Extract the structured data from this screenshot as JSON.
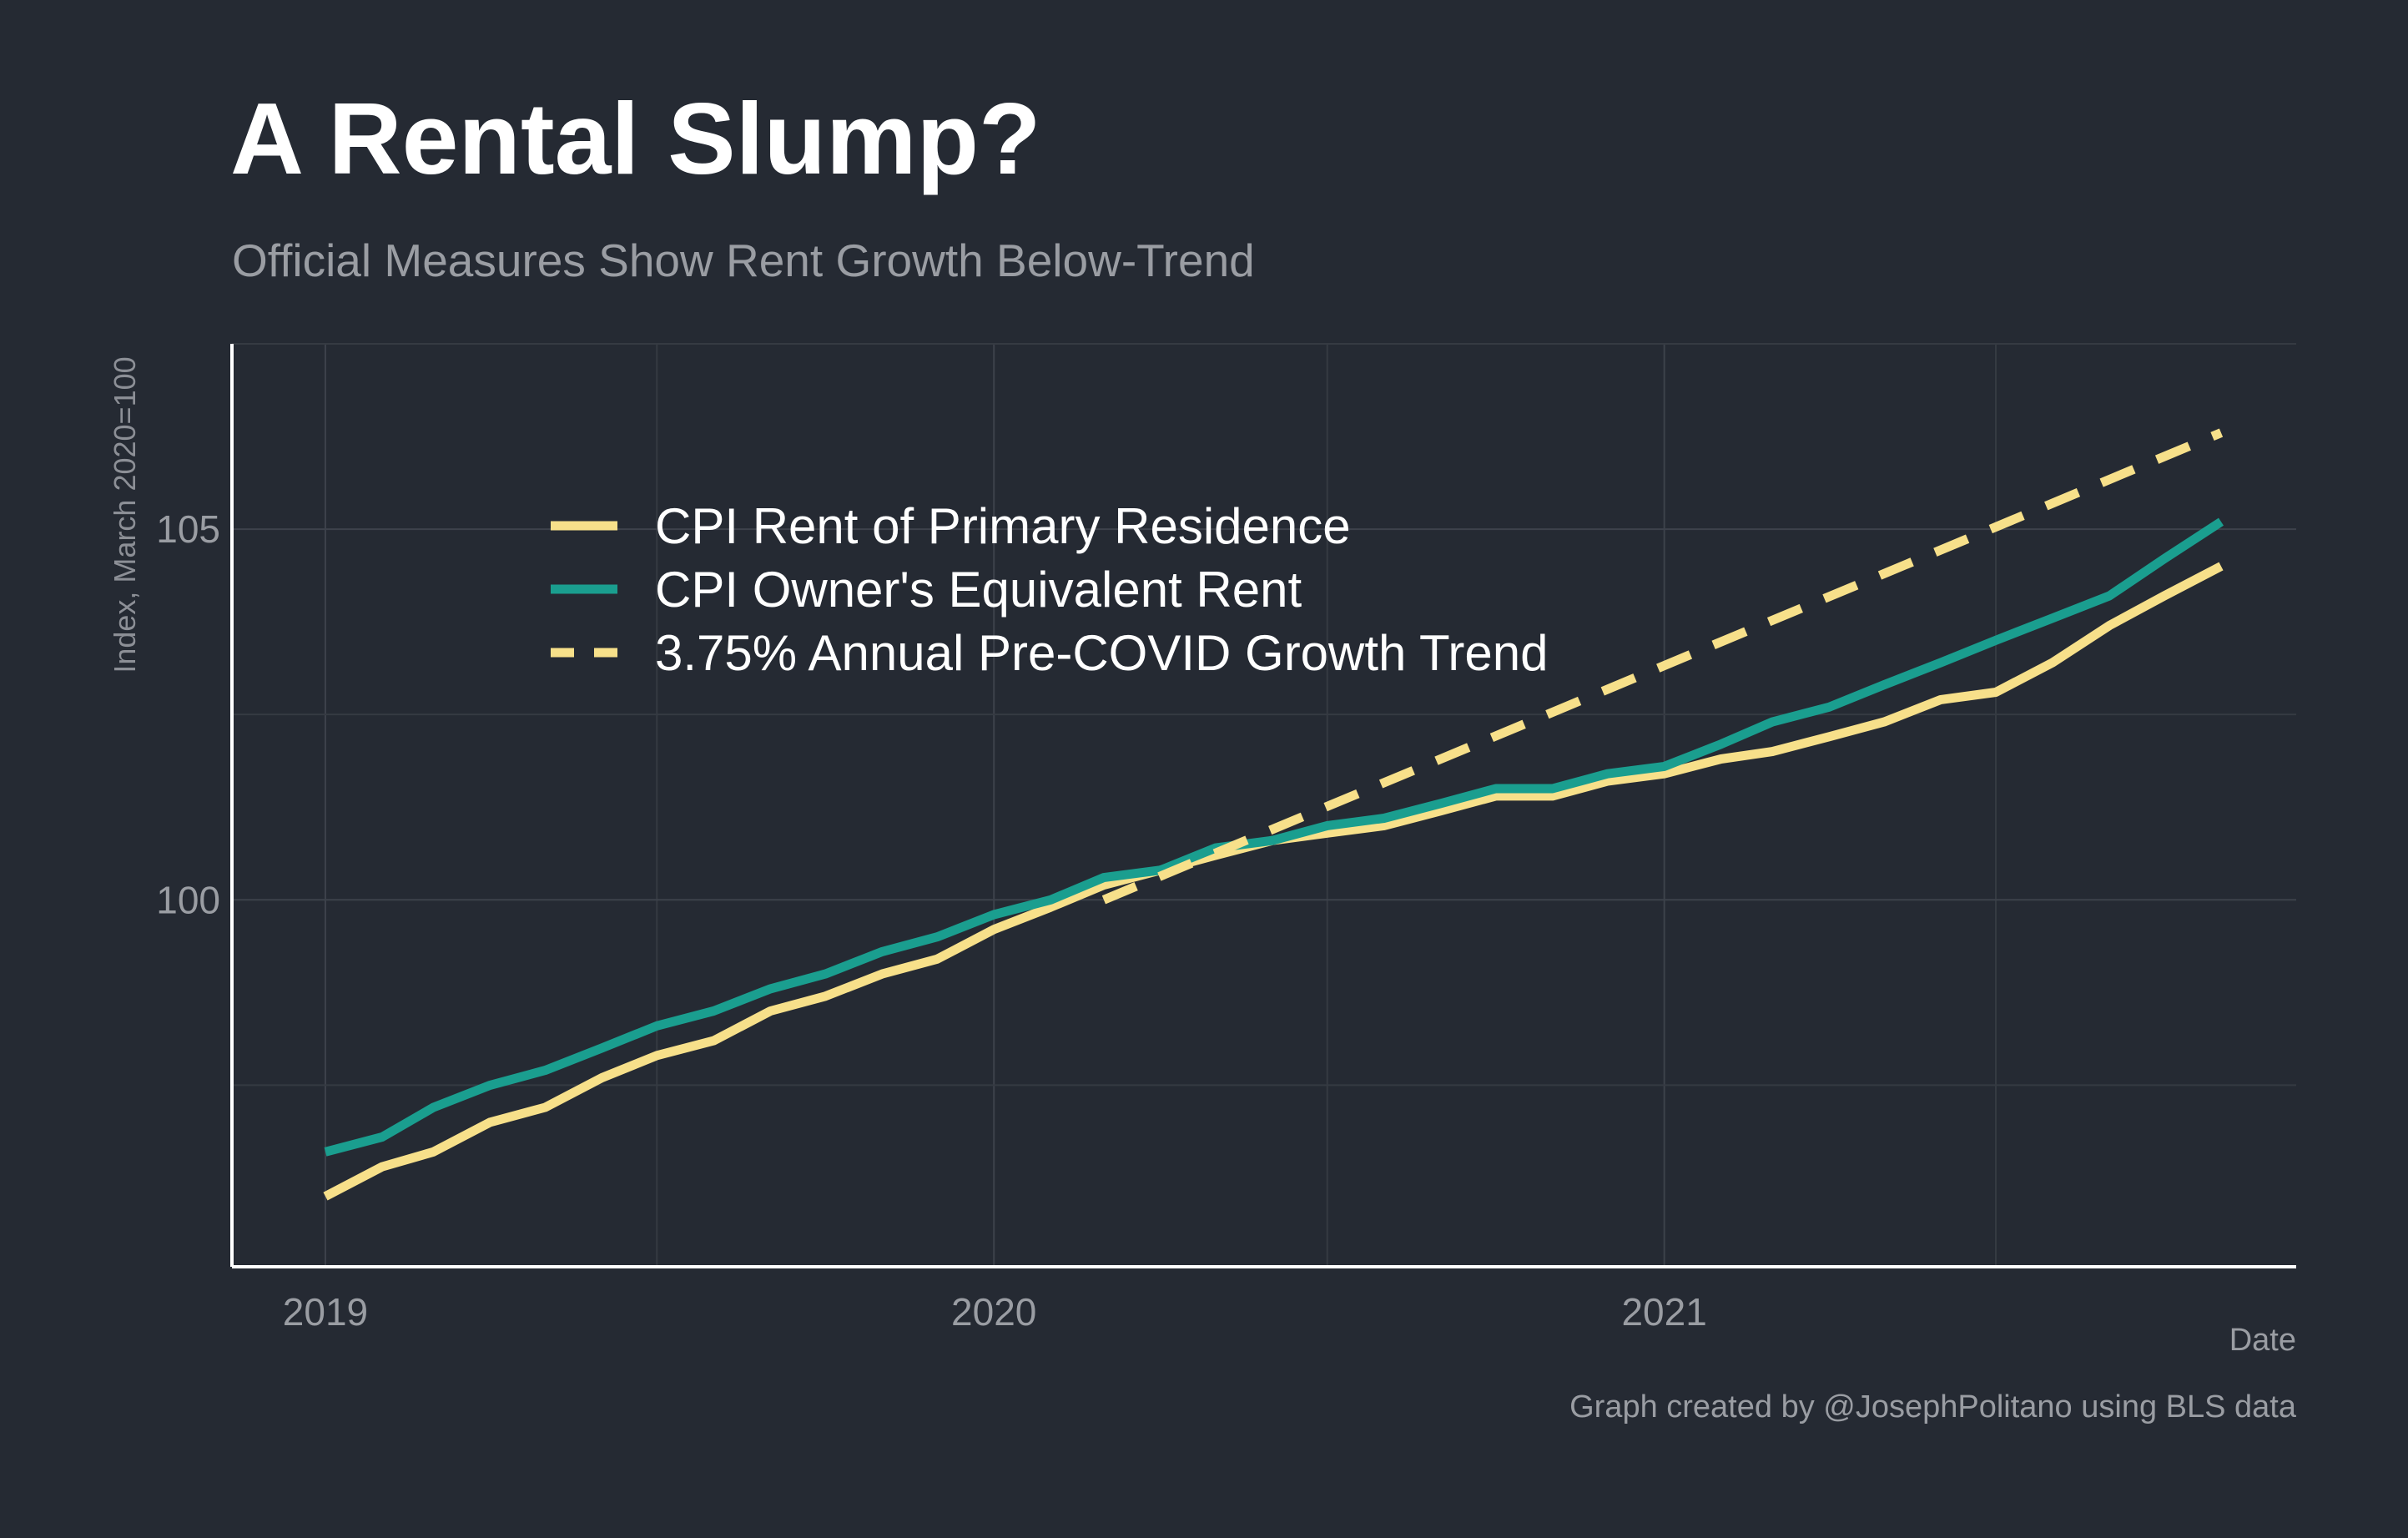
{
  "title": "A Rental Slump?",
  "subtitle": "Official Measures Show Rent Growth Below-Trend",
  "caption": "Graph created by @JosephPolitano using BLS data",
  "chart_data": {
    "type": "line",
    "xlabel": "Date",
    "ylabel": "Index, March 2020=100",
    "x_ticks": [
      "2019",
      "2020",
      "2021"
    ],
    "y_ticks": [
      100,
      105
    ],
    "xlim": [
      "2018-11-11",
      "2021-12-12"
    ],
    "ylim": [
      95.05,
      107.5
    ],
    "grid": true,
    "legend_position": "upper-left inside plot",
    "background_color": "#252a33",
    "series": [
      {
        "name": "CPI Rent of Primary Residence",
        "color": "#f7e08a",
        "style": "solid",
        "x": [
          "2019-01-01",
          "2019-02-01",
          "2019-03-01",
          "2019-04-01",
          "2019-05-01",
          "2019-06-01",
          "2019-07-01",
          "2019-08-01",
          "2019-09-01",
          "2019-10-01",
          "2019-11-01",
          "2019-12-01",
          "2020-01-01",
          "2020-02-01",
          "2020-03-01",
          "2020-04-01",
          "2020-05-01",
          "2020-06-01",
          "2020-07-01",
          "2020-08-01",
          "2020-09-01",
          "2020-10-01",
          "2020-11-01",
          "2020-12-01",
          "2021-01-01",
          "2021-02-01",
          "2021-03-01",
          "2021-04-01",
          "2021-05-01",
          "2021-06-01",
          "2021-07-01",
          "2021-08-01",
          "2021-09-01",
          "2021-10-01",
          "2021-11-01"
        ],
        "y": [
          96.0,
          96.4,
          96.6,
          97.0,
          97.2,
          97.6,
          97.9,
          98.1,
          98.5,
          98.7,
          99.0,
          99.2,
          99.6,
          99.9,
          100.2,
          100.4,
          100.6,
          100.8,
          100.9,
          101.0,
          101.2,
          101.4,
          101.4,
          101.6,
          101.7,
          101.9,
          102.0,
          102.2,
          102.4,
          102.7,
          102.8,
          103.2,
          103.7,
          104.1,
          104.5
        ],
        "note": "monthly values estimated from the plotted line"
      },
      {
        "name": "CPI Owner's Equivalent Rent",
        "color": "#1a9e8f",
        "style": "solid",
        "x": [
          "2019-01-01",
          "2019-02-01",
          "2019-03-01",
          "2019-04-01",
          "2019-05-01",
          "2019-06-01",
          "2019-07-01",
          "2019-08-01",
          "2019-09-01",
          "2019-10-01",
          "2019-11-01",
          "2019-12-01",
          "2020-01-01",
          "2020-02-01",
          "2020-03-01",
          "2020-04-01",
          "2020-05-01",
          "2020-06-01",
          "2020-07-01",
          "2020-08-01",
          "2020-09-01",
          "2020-10-01",
          "2020-11-01",
          "2020-12-01",
          "2021-01-01",
          "2021-02-01",
          "2021-03-01",
          "2021-04-01",
          "2021-05-01",
          "2021-06-01",
          "2021-07-01",
          "2021-08-01",
          "2021-09-01",
          "2021-10-01",
          "2021-11-01"
        ],
        "y": [
          96.6,
          96.8,
          97.2,
          97.5,
          97.7,
          98.0,
          98.3,
          98.5,
          98.8,
          99.0,
          99.3,
          99.5,
          99.8,
          100.0,
          100.3,
          100.4,
          100.7,
          100.8,
          101.0,
          101.1,
          101.3,
          101.5,
          101.5,
          101.7,
          101.8,
          102.1,
          102.4,
          102.6,
          102.9,
          103.2,
          103.5,
          103.8,
          104.1,
          104.6,
          105.1
        ],
        "note": "monthly values estimated from the plotted line"
      },
      {
        "name": "3.75% Annual Pre-COVID Growth Trend",
        "color": "#f7e08a",
        "style": "dashed",
        "x": [
          "2020-03-01",
          "2021-11-01"
        ],
        "y": [
          100.0,
          106.3
        ]
      }
    ]
  }
}
